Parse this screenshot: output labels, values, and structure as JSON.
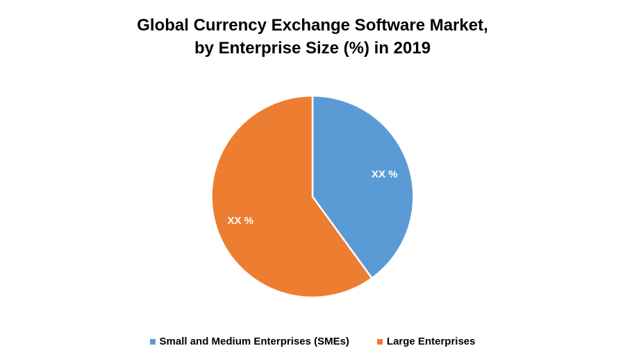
{
  "chart_data": {
    "type": "pie",
    "title_line1": "Global Currency Exchange Software Market,",
    "title_line2": "by Enterprise Size (%) in 2019",
    "categories": [
      "Small and Medium Enterprises (SMEs)",
      "Large Enterprises"
    ],
    "values": [
      40,
      60
    ],
    "data_labels": [
      "XX %",
      "XX %"
    ],
    "colors": [
      "#5B9BD5",
      "#ED7D31"
    ],
    "legend_position": "bottom"
  }
}
